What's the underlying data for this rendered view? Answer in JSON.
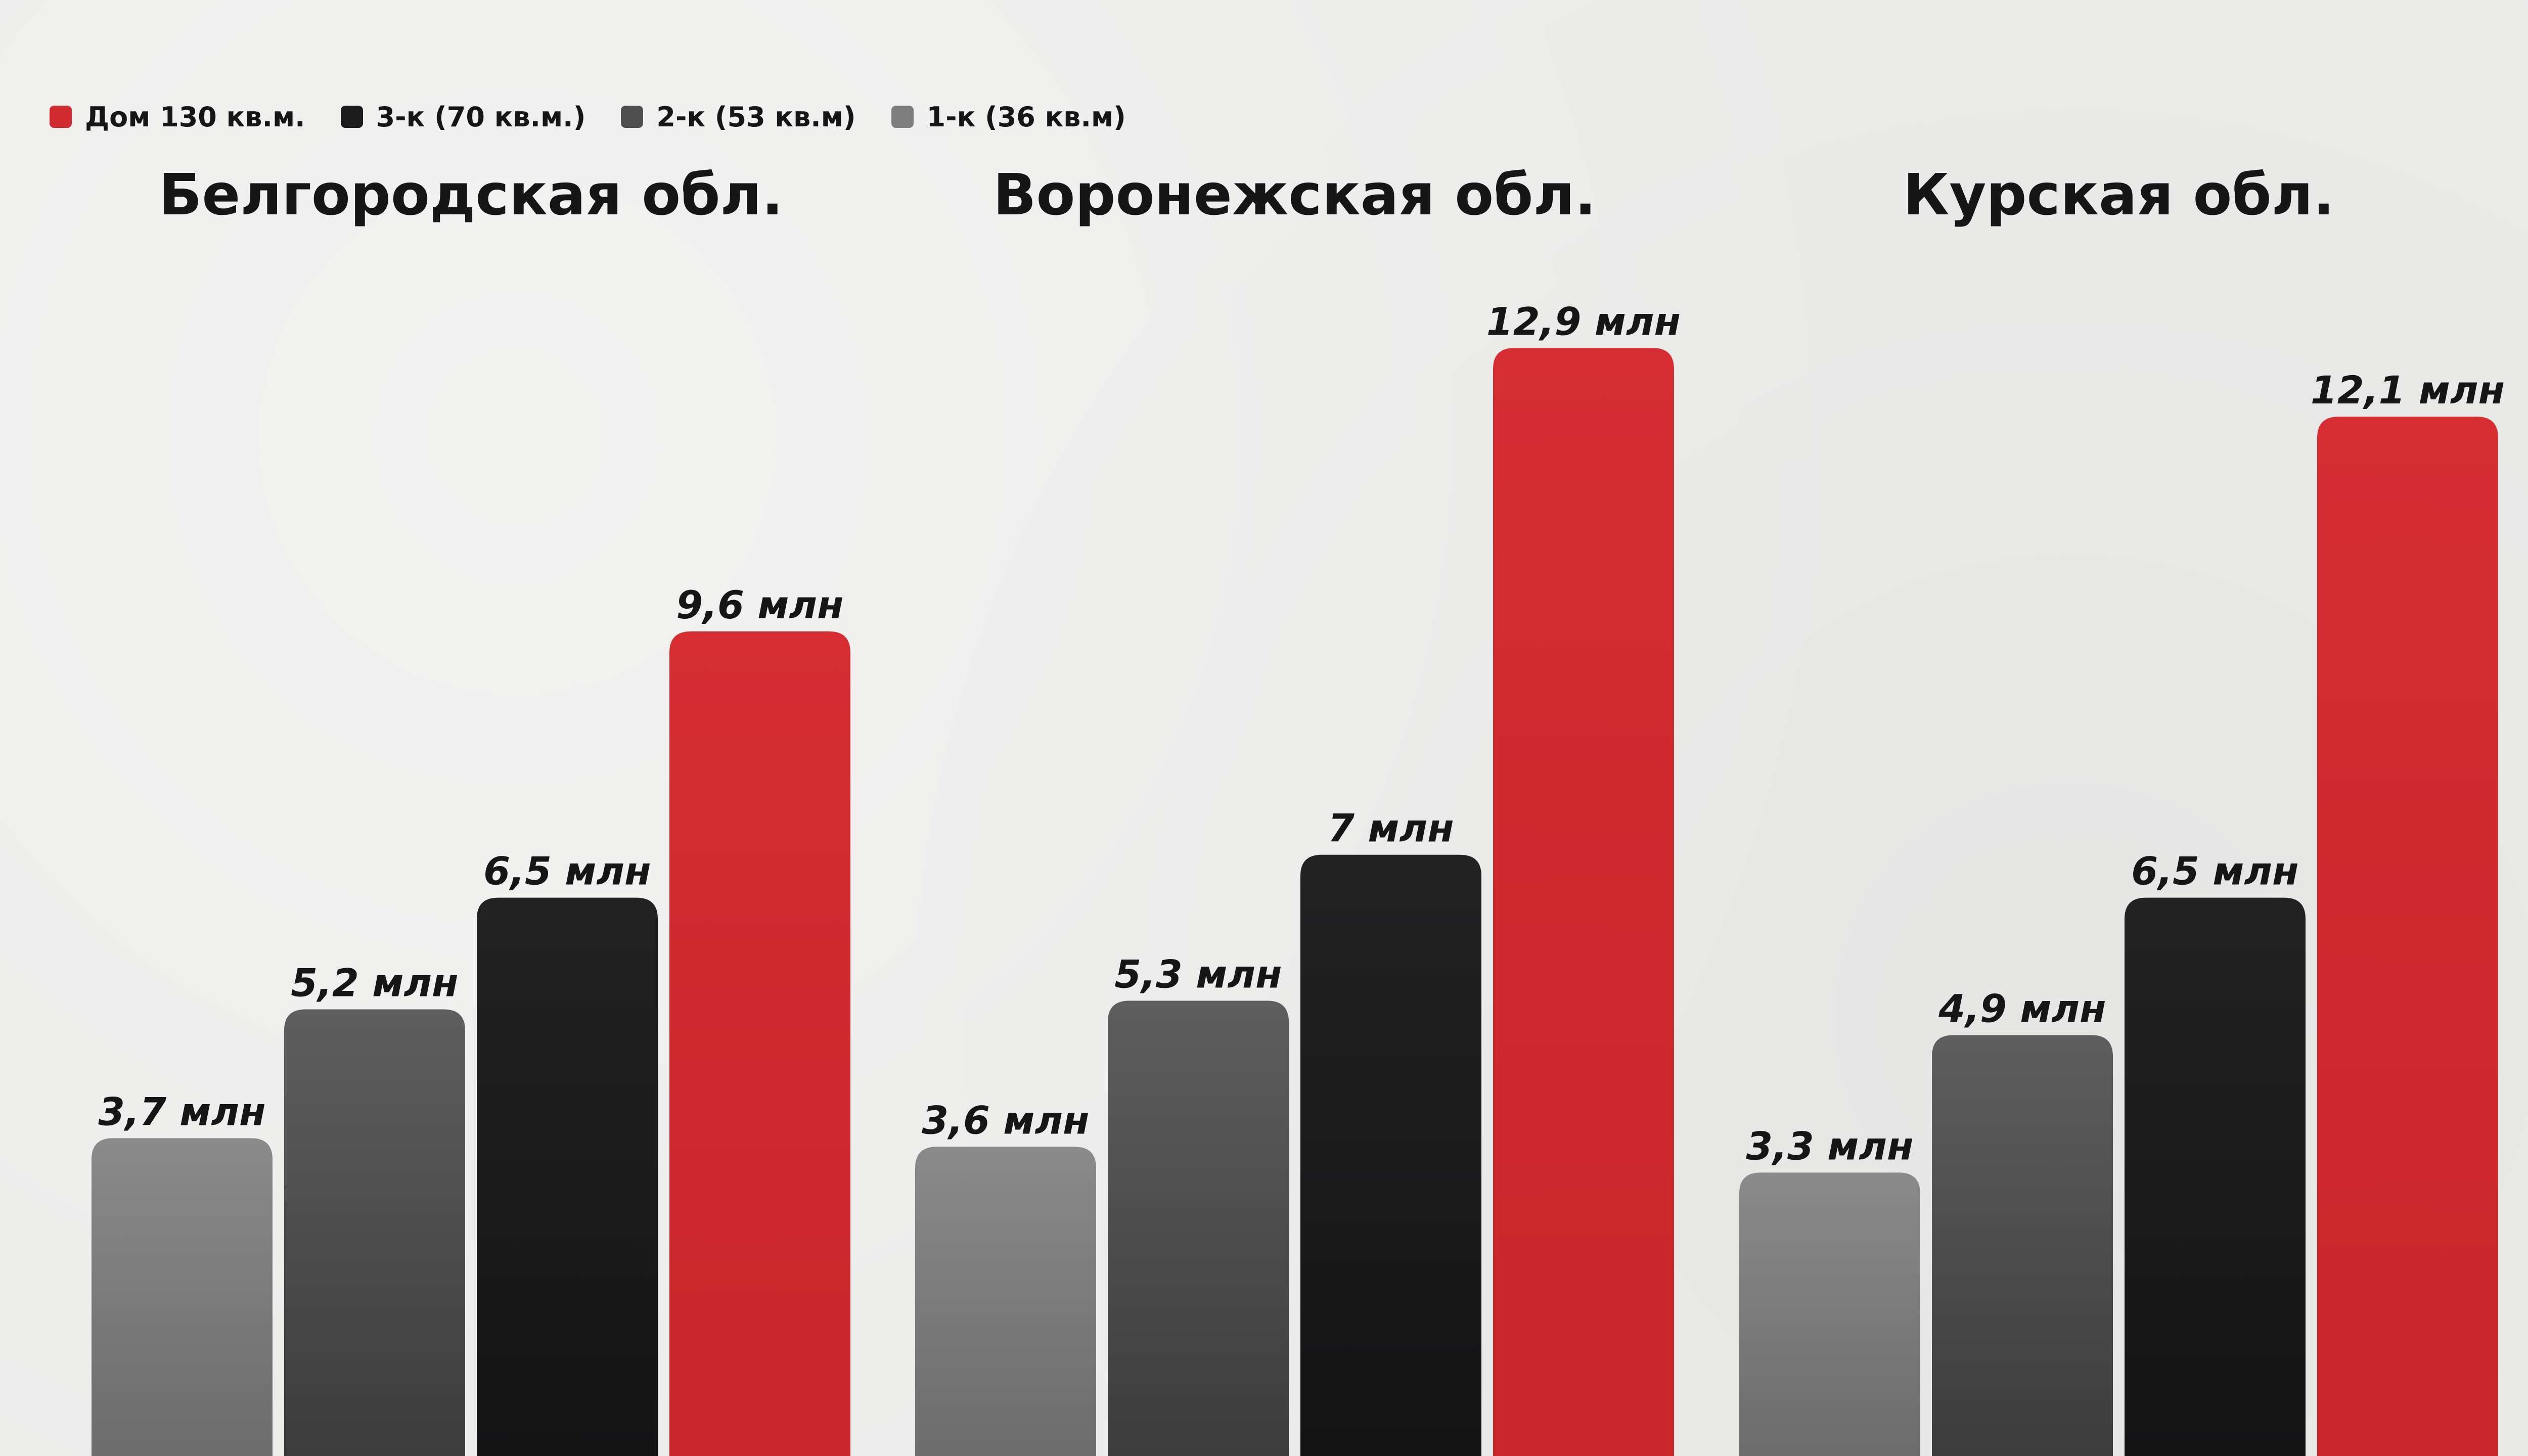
{
  "chart_data": {
    "type": "bar",
    "legend_position": "top-left",
    "grid": false,
    "unit": "млн",
    "ylim": [
      0,
      14
    ],
    "series": [
      {
        "name": "1-к (36 кв.м)",
        "color": "#7e7e7e"
      },
      {
        "name": "2-к (53 кв.м)",
        "color": "#5b5b5b"
      },
      {
        "name": "3-к (70 кв.м.)",
        "color": "#1c1c1d"
      },
      {
        "name": "Дом 130 кв.м.",
        "color": "#d12a2f"
      }
    ],
    "legend": [
      {
        "label": "Дом 130 кв.м.",
        "color": "#d12a2f"
      },
      {
        "label": "3-к (70 кв.м.)",
        "color": "#1c1c1d"
      },
      {
        "label": "2-к (53 кв.м)",
        "color": "#4f4f4f"
      },
      {
        "label": "1-к (36 кв.м)",
        "color": "#7e7e7e"
      }
    ],
    "panels": [
      {
        "title": "Белгородская обл.",
        "values": [
          3.7,
          5.2,
          6.5,
          9.6
        ],
        "labels": [
          "3,7 млн",
          "5,2 млн",
          "6,5 млн",
          "9,6 млн"
        ]
      },
      {
        "title": "Воронежская обл.",
        "values": [
          3.6,
          5.3,
          7.0,
          12.9
        ],
        "labels": [
          "3,6 млн",
          "5,3 млн",
          "7 млн",
          "12,9 млн"
        ]
      },
      {
        "title": "Курская обл.",
        "values": [
          3.3,
          4.9,
          6.5,
          12.1
        ],
        "labels": [
          "3,3 млн",
          "4,9 млн",
          "6,5 млн",
          "12,1 млн"
        ]
      }
    ]
  }
}
